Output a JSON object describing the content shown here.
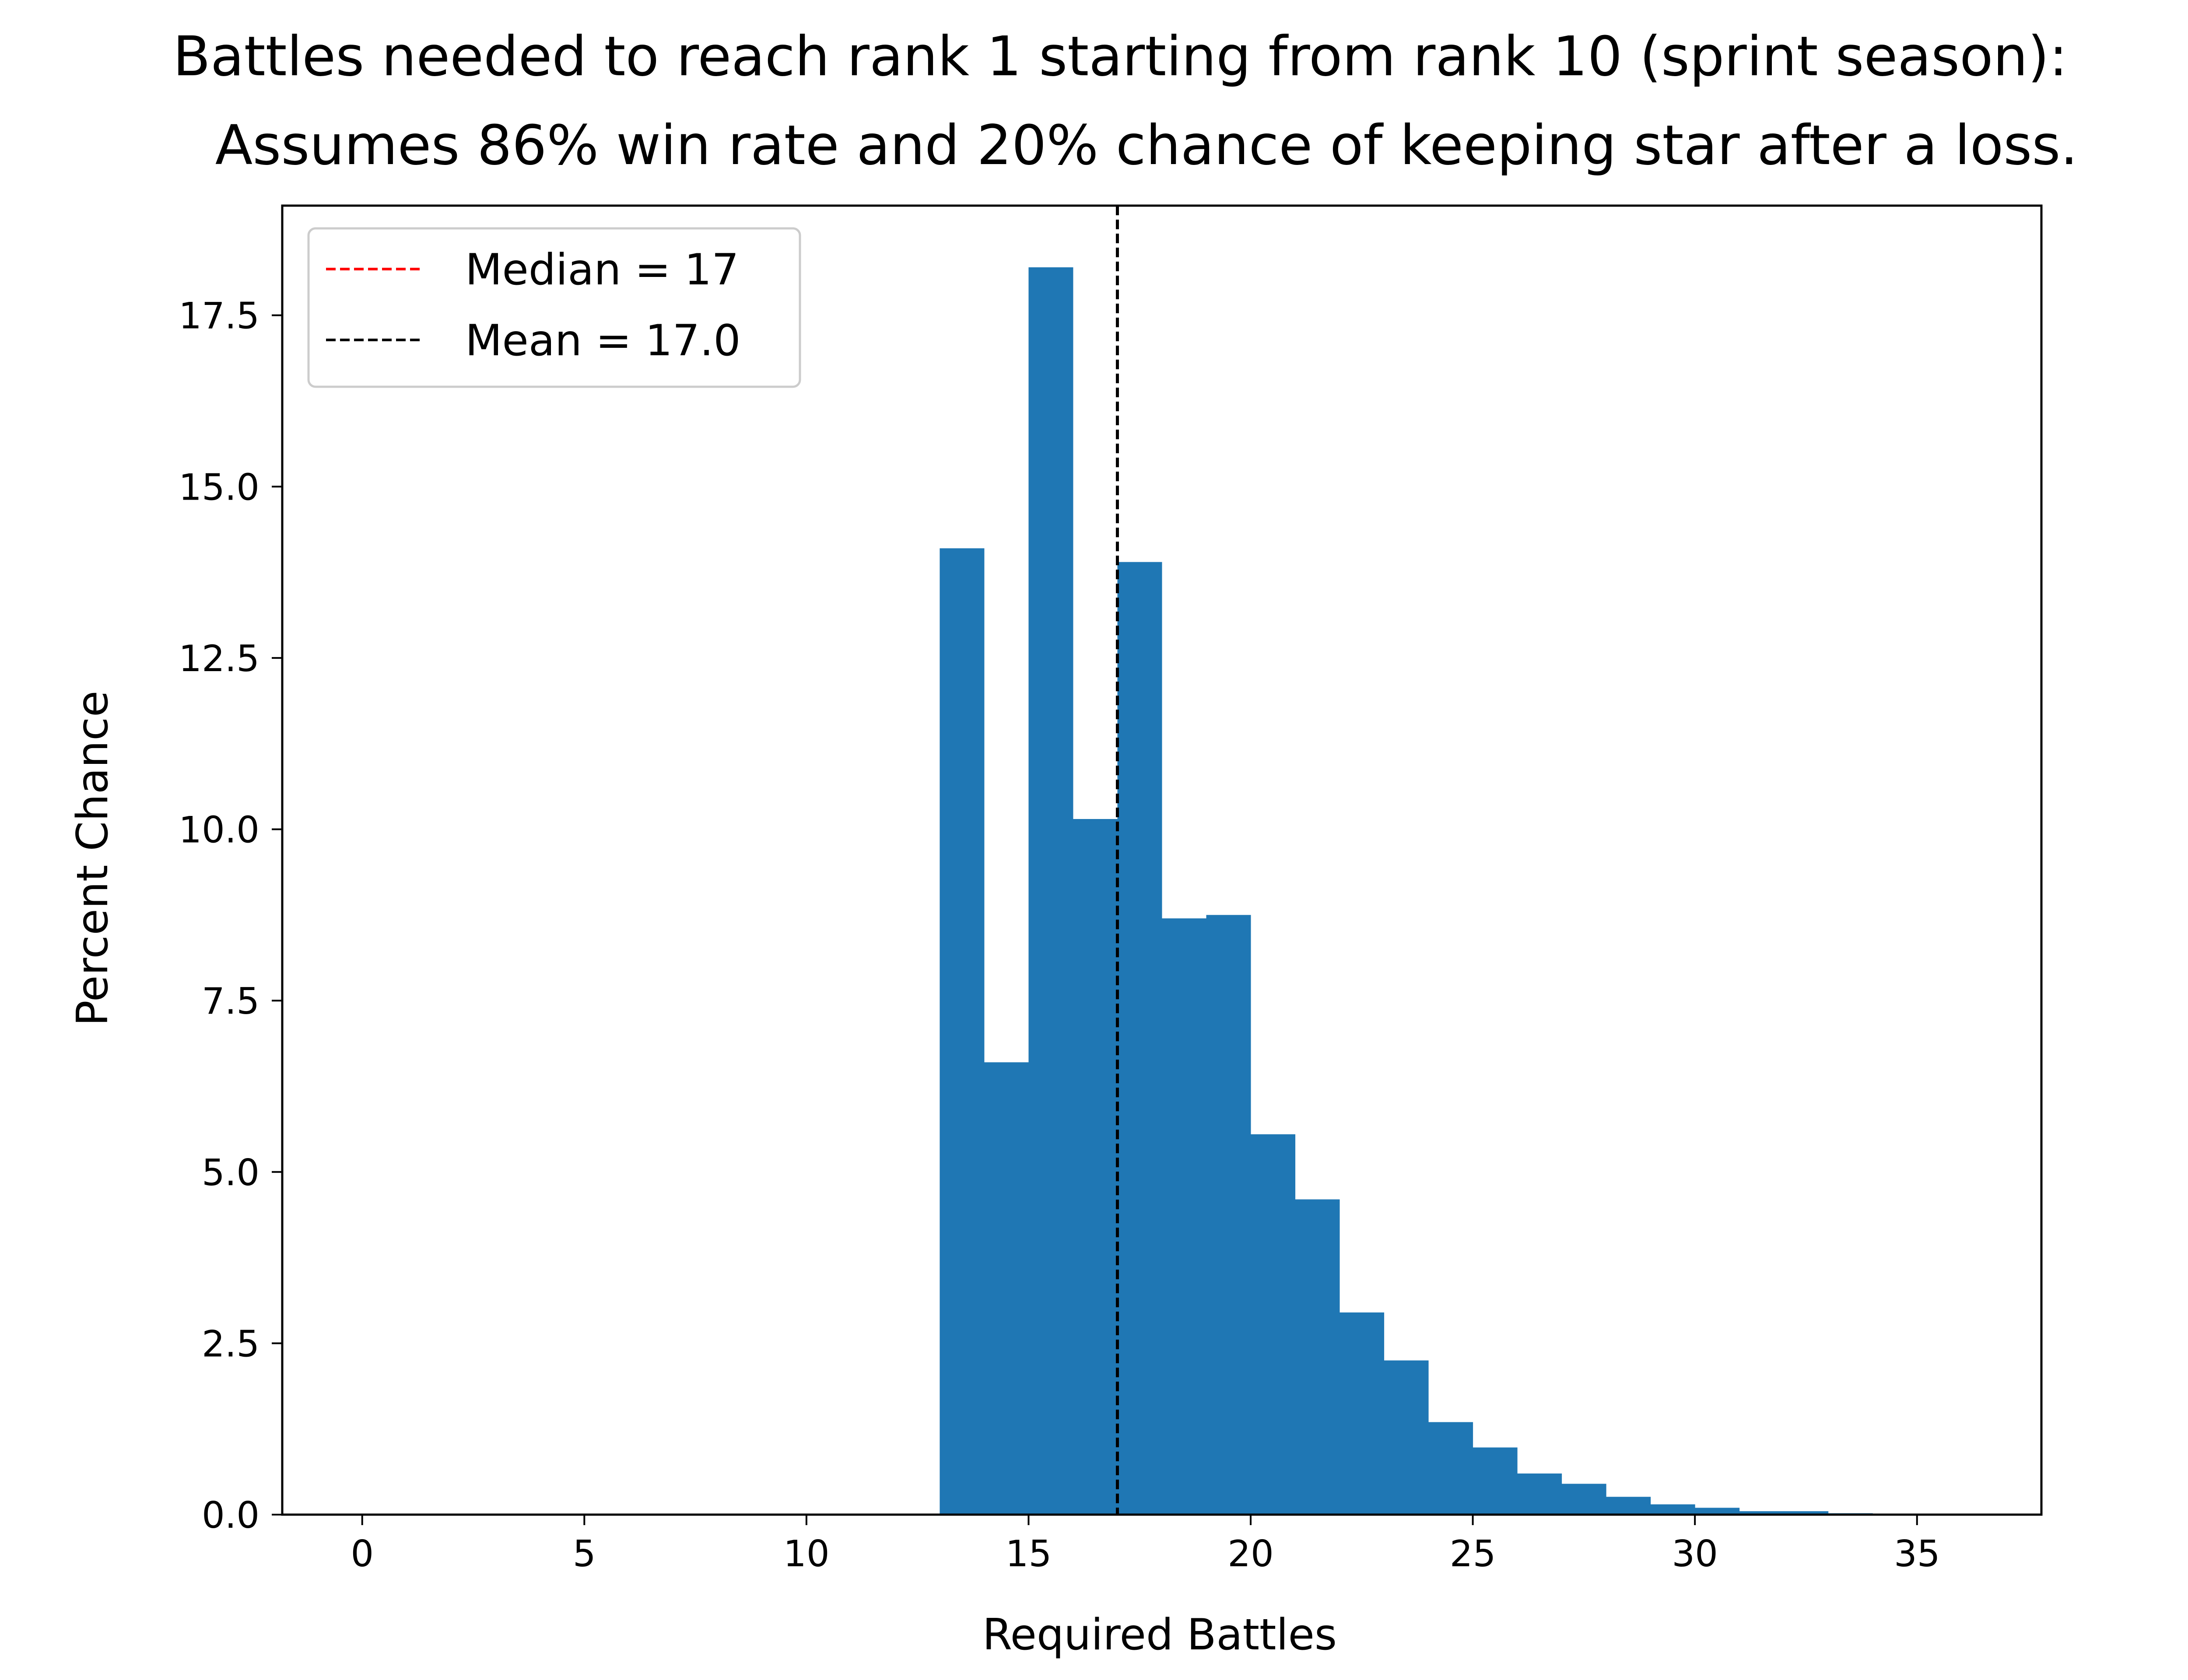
{
  "chart_data": {
    "type": "bar",
    "title": "Battles needed to reach rank 1 starting from rank 10 (sprint season):",
    "subtitle": "Assumes 86% win rate and 20% chance of keeping star after a loss.",
    "xlabel": "Required Battles",
    "ylabel": "Percent Chance",
    "xlim": [
      -1.8,
      37.8
    ],
    "ylim": [
      0,
      19.1
    ],
    "xticks": [
      0,
      5,
      10,
      15,
      20,
      25,
      30,
      35
    ],
    "yticks": [
      "0.0",
      "2.5",
      "5.0",
      "7.5",
      "10.0",
      "12.5",
      "15.0",
      "17.5"
    ],
    "bar_color": "#1f77b4",
    "bins": [
      {
        "start": 13,
        "end": 14,
        "value": 14.1
      },
      {
        "start": 14,
        "end": 15,
        "value": 6.6
      },
      {
        "start": 15,
        "end": 16,
        "value": 18.2
      },
      {
        "start": 16,
        "end": 17,
        "value": 10.15
      },
      {
        "start": 17,
        "end": 18,
        "value": 13.9
      },
      {
        "start": 18,
        "end": 19,
        "value": 8.7
      },
      {
        "start": 19,
        "end": 20,
        "value": 8.75
      },
      {
        "start": 20,
        "end": 21,
        "value": 5.55
      },
      {
        "start": 21,
        "end": 22,
        "value": 4.6
      },
      {
        "start": 22,
        "end": 23,
        "value": 2.95
      },
      {
        "start": 23,
        "end": 24,
        "value": 2.25
      },
      {
        "start": 24,
        "end": 25,
        "value": 1.35
      },
      {
        "start": 25,
        "end": 26,
        "value": 0.98
      },
      {
        "start": 26,
        "end": 27,
        "value": 0.6
      },
      {
        "start": 27,
        "end": 28,
        "value": 0.45
      },
      {
        "start": 28,
        "end": 29,
        "value": 0.26
      },
      {
        "start": 29,
        "end": 30,
        "value": 0.15
      },
      {
        "start": 30,
        "end": 31,
        "value": 0.1
      },
      {
        "start": 31,
        "end": 32,
        "value": 0.05
      },
      {
        "start": 32,
        "end": 33,
        "value": 0.05
      },
      {
        "start": 33,
        "end": 34,
        "value": 0.02
      },
      {
        "start": 34,
        "end": 35,
        "value": 0.01
      },
      {
        "start": 35,
        "end": 36,
        "value": 0.005
      }
    ],
    "reference_lines": [
      {
        "label": "Median = 17",
        "x": 17,
        "color": "#ff0000",
        "style": "dashed"
      },
      {
        "label": "Mean = 17.0",
        "x": 17.0,
        "color": "#000000",
        "style": "dashed"
      }
    ],
    "legend_position": "top-left",
    "grid": false
  }
}
